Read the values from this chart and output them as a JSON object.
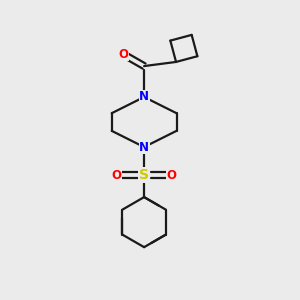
{
  "background_color": "#ebebeb",
  "bond_color": "#1a1a1a",
  "N_color": "#0000ff",
  "O_color": "#ff0000",
  "S_color": "#cccc00",
  "line_width": 1.6,
  "figsize": [
    3.0,
    3.0
  ],
  "dpi": 100,
  "xlim": [
    0,
    10
  ],
  "ylim": [
    0,
    10
  ]
}
